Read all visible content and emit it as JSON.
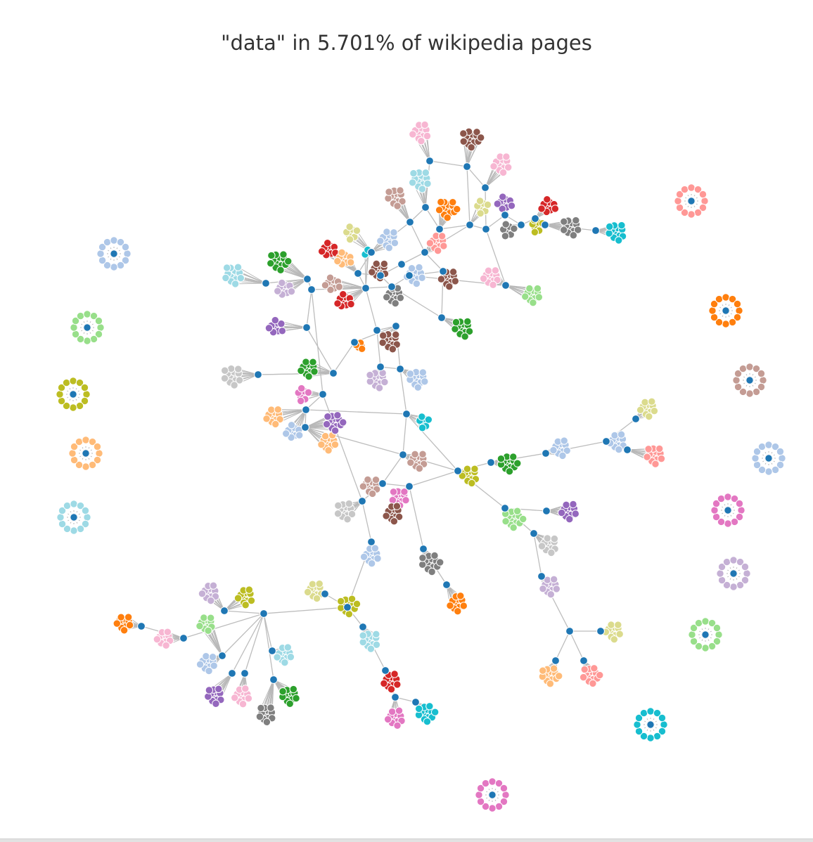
{
  "title": "\"data\" in 5.701% of wikipedia pages",
  "colors": {
    "hub": "#1f77b4",
    "edge": "#bdbdbd",
    "palette": [
      "#aec7e8",
      "#ff7f0e",
      "#ffbb78",
      "#2ca02c",
      "#98df8a",
      "#d62728",
      "#ff9896",
      "#9467bd",
      "#c5b0d5",
      "#8c564b",
      "#c49c94",
      "#e377c2",
      "#f7b6d2",
      "#7f7f7f",
      "#c7c7c7",
      "#bcbd22",
      "#dbdb8d",
      "#17becf",
      "#9edae5"
    ]
  },
  "graph": {
    "type": "force-directed network",
    "hubs": 73,
    "leaf_clusters": 86,
    "isolated_clusters": 13,
    "node_color": "category",
    "hub_color": "#1f77b4"
  }
}
